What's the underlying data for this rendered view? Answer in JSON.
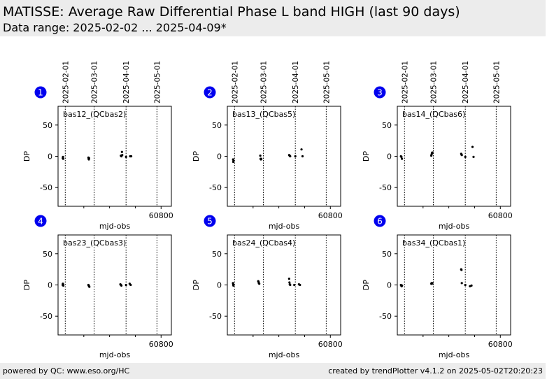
{
  "header": {
    "title": "MATISSE: Average Raw Differential Phase L band HIGH (last 90 days)",
    "subtitle": "Data range: 2025-02-02 ... 2025-04-09*"
  },
  "footer": {
    "left": "powered by QC: www.eso.org/HC",
    "right": "created by trendPlotter v4.1.2 on 2025-05-02T20:20:23"
  },
  "chart_data": [
    {
      "type": "scatter",
      "panel_number": "1",
      "label": "bas12_(QCbas2)",
      "xlabel": "mjd-obs",
      "ylabel": "DP",
      "xlim": [
        60700,
        60810
      ],
      "ylim": [
        -80,
        80
      ],
      "xticks": [
        60800
      ],
      "yticks": [
        50,
        0,
        -50
      ],
      "date_lines": [
        60707,
        60735,
        60766,
        60796
      ],
      "date_labels": [
        "2025-02-01",
        "2025-03-01",
        "2025-04-01",
        "2025-05-01"
      ],
      "x": [
        60704.6,
        60704.8,
        60705.0,
        60729.5,
        60729.7,
        60729.9,
        60730.1,
        60761.0,
        60761.5,
        60762.0,
        60762.3,
        60766.0,
        60770.0,
        60770.5,
        60771.0
      ],
      "y": [
        -3,
        -1,
        -4,
        -2,
        -4,
        -5,
        -3,
        1,
        0,
        7,
        2,
        -1,
        0,
        0,
        0
      ]
    },
    {
      "type": "scatter",
      "panel_number": "2",
      "label": "bas13_(QCbas5)",
      "xlabel": "mjd-obs",
      "ylabel": "DP",
      "xlim": [
        60700,
        60810
      ],
      "ylim": [
        -80,
        80
      ],
      "xticks": [
        60800
      ],
      "yticks": [
        50,
        0,
        -50
      ],
      "date_lines": [
        60707,
        60735,
        60766,
        60796
      ],
      "date_labels": [
        "2025-02-01",
        "2025-03-01",
        "2025-04-01",
        "2025-05-01"
      ],
      "x": [
        60705.6,
        60705.8,
        60706.0,
        60732.0,
        60732.3,
        60732.6,
        60733.0,
        60760.0,
        60760.5,
        60761.0,
        60766.0,
        60772.0,
        60773.0
      ],
      "y": [
        -5,
        -9,
        -7,
        1,
        -4,
        -5,
        -4,
        2,
        1,
        0,
        0,
        11,
        0
      ]
    },
    {
      "type": "scatter",
      "panel_number": "3",
      "label": "bas14_(QCbas6)",
      "xlabel": "mjd-obs",
      "ylabel": "DP",
      "xlim": [
        60700,
        60810
      ],
      "ylim": [
        -80,
        80
      ],
      "xticks": [
        60800
      ],
      "yticks": [
        50,
        0,
        -50
      ],
      "date_lines": [
        60707,
        60735,
        60766,
        60796
      ],
      "date_labels": [
        "2025-02-01",
        "2025-03-01",
        "2025-04-01",
        "2025-05-01"
      ],
      "x": [
        60703.5,
        60704.0,
        60704.5,
        60733.0,
        60733.3,
        60733.6,
        60734.0,
        60762.0,
        60762.3,
        60762.6,
        60766.0,
        60773.0,
        60774.0
      ],
      "y": [
        0,
        -1,
        -4,
        1,
        3,
        5,
        6,
        4,
        3,
        2,
        -1,
        15,
        -1
      ]
    },
    {
      "type": "scatter",
      "panel_number": "4",
      "label": "bas23_(QCbas3)",
      "xlabel": "mjd-obs",
      "ylabel": "DP",
      "xlim": [
        60700,
        60810
      ],
      "ylim": [
        -80,
        80
      ],
      "xticks": [
        60800
      ],
      "yticks": [
        50,
        0,
        -50
      ],
      "date_lines": [
        60707,
        60735,
        60766,
        60796
      ],
      "date_labels": [
        "2025-02-01",
        "2025-03-01",
        "2025-04-01",
        "2025-05-01"
      ],
      "x": [
        60704.5,
        60704.7,
        60704.9,
        60705.1,
        60729.5,
        60729.8,
        60730.1,
        60730.4,
        60760.5,
        60761.0,
        60761.5,
        60766.0,
        60769.5,
        60770.5
      ],
      "y": [
        0,
        2,
        1,
        -1,
        0,
        -1,
        -2,
        -3,
        1,
        0,
        -1,
        0,
        2,
        0
      ]
    },
    {
      "type": "scatter",
      "panel_number": "5",
      "label": "bas24_(QCbas4)",
      "xlabel": "mjd-obs",
      "ylabel": "DP",
      "xlim": [
        60700,
        60810
      ],
      "ylim": [
        -80,
        80
      ],
      "xticks": [
        60800
      ],
      "yticks": [
        50,
        0,
        -50
      ],
      "date_lines": [
        60707,
        60735,
        60766,
        60796
      ],
      "date_labels": [
        "2025-02-01",
        "2025-03-01",
        "2025-04-01",
        "2025-05-01"
      ],
      "x": [
        60705.5,
        60705.7,
        60705.9,
        60730.0,
        60730.3,
        60730.6,
        60731.0,
        60760.0,
        60760.3,
        60760.6,
        60761.0,
        60765.0,
        60769.5,
        60770.5
      ],
      "y": [
        3,
        1,
        -1,
        6,
        5,
        3,
        2,
        10,
        4,
        1,
        0,
        0,
        1,
        0
      ]
    },
    {
      "type": "scatter",
      "panel_number": "6",
      "label": "bas34_(QCbas1)",
      "xlabel": "mjd-obs",
      "ylabel": "DP",
      "xlim": [
        60700,
        60810
      ],
      "ylim": [
        -80,
        80
      ],
      "xticks": [
        60800
      ],
      "yticks": [
        50,
        0,
        -50
      ],
      "date_lines": [
        60707,
        60735,
        60766,
        60796
      ],
      "date_labels": [
        "2025-02-01",
        "2025-03-01",
        "2025-04-01",
        "2025-05-01"
      ],
      "x": [
        60703.5,
        60703.8,
        60704.2,
        60704.6,
        60733.0,
        60733.3,
        60733.6,
        60734.0,
        60762.0,
        60762.3,
        60762.6,
        60766.0,
        60770.5,
        60772.0
      ],
      "y": [
        0,
        -1,
        -2,
        -1,
        2,
        3,
        2,
        3,
        25,
        24,
        3,
        0,
        -2,
        -1
      ]
    }
  ]
}
